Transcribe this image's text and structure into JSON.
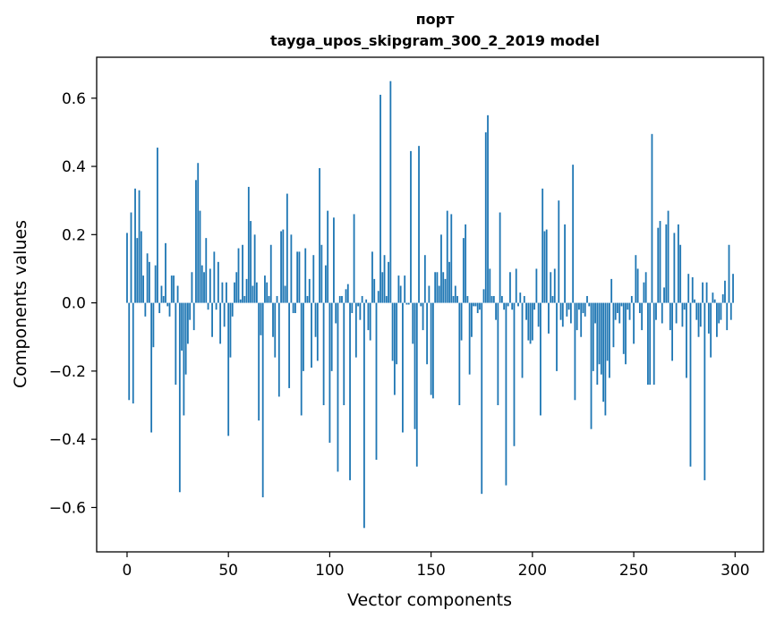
{
  "chart_data": {
    "type": "bar",
    "title_line1": "порт",
    "title_line2": "tayga_upos_skipgram_300_2_2019 model",
    "xlabel": "Vector components",
    "ylabel": "Components values",
    "xlim": [
      -15,
      314
    ],
    "ylim": [
      -0.73,
      0.72
    ],
    "xticks": [
      0,
      50,
      100,
      150,
      200,
      250,
      300
    ],
    "xtick_labels": [
      "0",
      "50",
      "100",
      "150",
      "200",
      "250",
      "300"
    ],
    "yticks": [
      -0.6,
      -0.4,
      -0.2,
      0.0,
      0.2,
      0.4,
      0.6
    ],
    "ytick_labels": [
      "−0.6",
      "−0.4",
      "−0.2",
      "0.0",
      "0.2",
      "0.4",
      "0.6"
    ],
    "bar_color": "#1f77b4",
    "values": [
      0.205,
      -0.285,
      0.265,
      -0.295,
      0.335,
      0.19,
      0.33,
      0.21,
      0.08,
      -0.04,
      0.145,
      0.12,
      -0.38,
      -0.13,
      0.11,
      0.455,
      -0.03,
      0.05,
      0.02,
      0.175,
      -0.01,
      -0.04,
      0.08,
      0.08,
      -0.24,
      0.05,
      -0.555,
      -0.14,
      -0.33,
      -0.21,
      -0.12,
      -0.05,
      0.09,
      -0.08,
      0.36,
      0.41,
      0.27,
      0.11,
      0.09,
      0.19,
      -0.02,
      0.1,
      -0.1,
      0.15,
      -0.02,
      0.12,
      -0.12,
      0.06,
      -0.07,
      0.06,
      -0.39,
      -0.16,
      -0.04,
      0.06,
      0.09,
      0.16,
      0.01,
      0.17,
      0.02,
      0.07,
      0.34,
      0.24,
      0.05,
      0.2,
      0.06,
      -0.345,
      -0.095,
      -0.57,
      0.08,
      0.06,
      0.02,
      0.17,
      -0.1,
      -0.16,
      0.02,
      -0.275,
      0.21,
      0.215,
      0.05,
      0.32,
      -0.25,
      0.2,
      -0.03,
      -0.03,
      0.15,
      0.15,
      -0.33,
      -0.2,
      0.16,
      0.02,
      0.07,
      -0.19,
      0.14,
      -0.1,
      -0.17,
      0.395,
      0.17,
      -0.3,
      0.11,
      0.27,
      -0.41,
      -0.2,
      0.25,
      -0.06,
      -0.495,
      0.02,
      0.02,
      -0.3,
      0.04,
      0.055,
      -0.52,
      -0.03,
      0.26,
      -0.16,
      -0.01,
      -0.05,
      0.02,
      -0.66,
      0.01,
      -0.08,
      -0.11,
      0.15,
      0.07,
      -0.46,
      0.035,
      0.61,
      0.09,
      0.14,
      0.02,
      0.12,
      0.65,
      -0.17,
      -0.27,
      -0.18,
      0.08,
      0.05,
      -0.38,
      0.08,
      -0.005,
      -0.005,
      0.445,
      -0.12,
      -0.37,
      -0.48,
      0.46,
      -0.01,
      -0.08,
      0.14,
      -0.18,
      0.05,
      -0.27,
      -0.28,
      0.09,
      0.09,
      0.05,
      0.2,
      0.09,
      0.07,
      0.27,
      0.12,
      0.26,
      0.02,
      0.05,
      0.02,
      -0.3,
      -0.11,
      0.19,
      0.23,
      0.02,
      -0.21,
      -0.1,
      -0.01,
      -0.01,
      -0.03,
      -0.02,
      -0.56,
      0.04,
      0.5,
      0.55,
      0.1,
      0.02,
      0.02,
      -0.05,
      -0.3,
      0.265,
      0.02,
      -0.02,
      -0.535,
      -0.01,
      0.09,
      -0.02,
      -0.42,
      0.1,
      -0.01,
      0.03,
      -0.22,
      0.02,
      -0.05,
      -0.11,
      -0.12,
      -0.11,
      -0.02,
      0.1,
      -0.07,
      -0.33,
      0.335,
      0.21,
      0.215,
      -0.09,
      0.09,
      0.02,
      0.1,
      -0.2,
      0.3,
      -0.05,
      -0.07,
      0.23,
      -0.04,
      -0.02,
      -0.06,
      0.405,
      -0.285,
      -0.08,
      -0.02,
      -0.1,
      -0.03,
      -0.04,
      0.02,
      -0.01,
      -0.37,
      -0.2,
      -0.06,
      -0.24,
      -0.18,
      -0.21,
      -0.29,
      -0.33,
      -0.17,
      -0.22,
      0.07,
      -0.13,
      -0.05,
      -0.03,
      -0.06,
      -0.01,
      -0.15,
      -0.18,
      -0.02,
      -0.05,
      0.02,
      -0.12,
      0.14,
      0.1,
      -0.03,
      -0.08,
      0.06,
      0.09,
      -0.24,
      -0.24,
      0.495,
      -0.24,
      -0.05,
      0.22,
      0.24,
      -0.06,
      0.045,
      0.23,
      0.27,
      -0.08,
      -0.17,
      0.205,
      -0.06,
      0.23,
      0.17,
      -0.07,
      -0.02,
      -0.22,
      0.085,
      -0.48,
      0.075,
      0.01,
      -0.05,
      -0.1,
      -0.07,
      0.06,
      -0.52,
      0.06,
      -0.09,
      -0.16,
      0.03,
      0.01,
      -0.1,
      -0.06,
      -0.05,
      0.025,
      0.065,
      -0.08,
      0.17,
      -0.05,
      0.085
    ]
  }
}
